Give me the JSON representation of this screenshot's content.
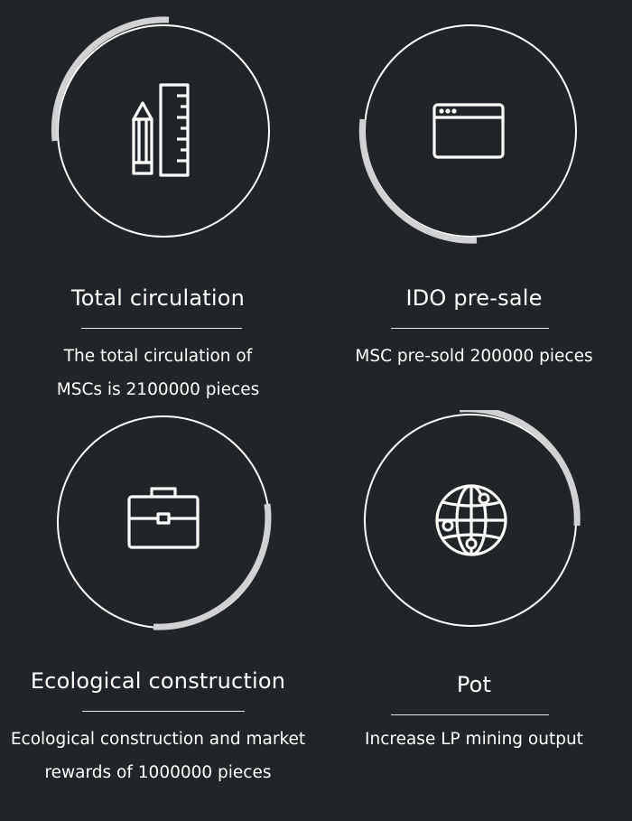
{
  "colors": {
    "background": "#232427",
    "ring": "#ffffff",
    "arc_highlight": "#d2d2d2",
    "text": "#ffffff"
  },
  "cards": [
    {
      "icon": "pencil-ruler-icon",
      "title": "Total circulation",
      "desc": [
        "The total circulation of",
        "MSCs is 2100000 pieces"
      ]
    },
    {
      "icon": "browser-window-icon",
      "title": "IDO pre-sale",
      "desc": [
        "MSC pre-sold 200000 pieces"
      ]
    },
    {
      "icon": "briefcase-icon",
      "title": "Ecological construction",
      "desc": [
        "Ecological construction and market",
        "rewards of 1000000 pieces"
      ]
    },
    {
      "icon": "globe-network-icon",
      "title": "Pot",
      "desc": [
        "Increase LP mining output"
      ]
    }
  ]
}
